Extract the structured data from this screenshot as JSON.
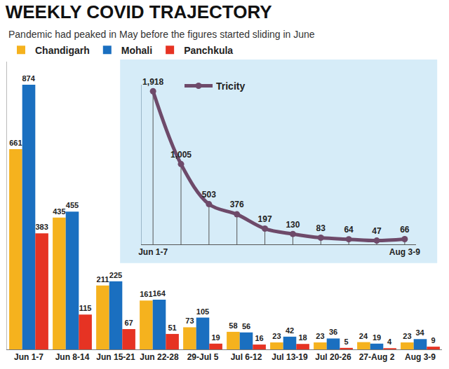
{
  "chart_data": [
    {
      "type": "bar",
      "title": "WEEKLY COVID TRAJECTORY",
      "subtitle": "Pandemic had peaked in May before the figures started sliding in June",
      "categories": [
        "Jun 1-7",
        "Jun 8-14",
        "Jun 15-21",
        "Jun 22-28",
        "29-Jul 5",
        "Jul 6-12",
        "Jul 13-19",
        "Jul 20-26",
        "27-Aug 2",
        "Aug 3-9"
      ],
      "series": [
        {
          "name": "Chandigarh",
          "color": "#f5b21e",
          "values": [
            661,
            435,
            211,
            161,
            73,
            58,
            23,
            23,
            24,
            23
          ]
        },
        {
          "name": "Mohali",
          "color": "#1a6fc0",
          "values": [
            874,
            455,
            225,
            164,
            105,
            56,
            42,
            36,
            19,
            34
          ]
        },
        {
          "name": "Panchkula",
          "color": "#e63323",
          "values": [
            383,
            115,
            67,
            51,
            19,
            16,
            18,
            5,
            4,
            9
          ]
        }
      ],
      "ylim": [
        0,
        950
      ],
      "grid": false,
      "legend": "top-left",
      "data_labels": true,
      "tick_labels": "x"
    },
    {
      "type": "line",
      "categories": [
        "Jun 1-7",
        null,
        null,
        null,
        null,
        null,
        null,
        null,
        null,
        "Aug 3-9"
      ],
      "series": [
        {
          "name": "Tricity",
          "color": "#6e4a6a",
          "marker": "circle",
          "values": [
            1918,
            1005,
            503,
            376,
            197,
            130,
            83,
            64,
            47,
            66
          ],
          "value_labels": [
            "1,918",
            "1,005",
            "503",
            "376",
            "197",
            "130",
            "83",
            "64",
            "47",
            "66"
          ]
        }
      ],
      "ylim": [
        0,
        2000
      ],
      "grid": false,
      "legend": "top-left",
      "data_labels": true,
      "tick_labels": "x"
    }
  ]
}
